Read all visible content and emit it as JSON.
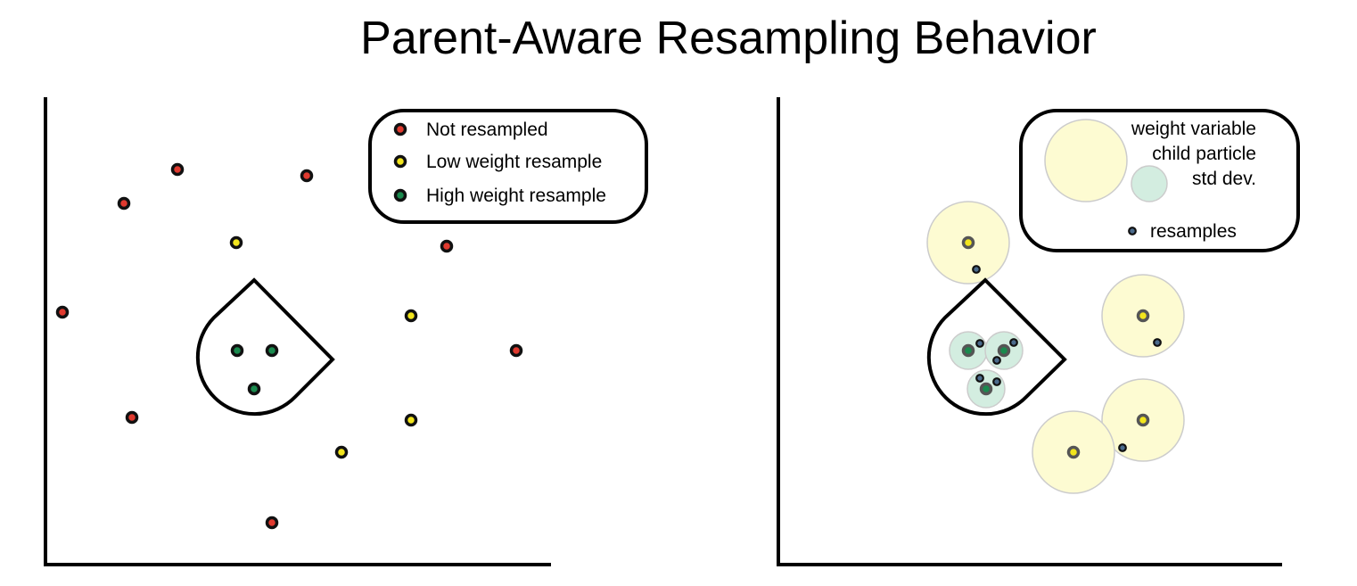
{
  "title": "Parent-Aware Resampling Behavior",
  "colors": {
    "not_resampled": "#e03a2f",
    "low_weight": "#f2e51d",
    "high_weight": "#1a8a4e",
    "low_weight_halo": "#fdfbd2",
    "high_weight_halo": "#d3ede0",
    "halo_stroke": "#cccccc",
    "resample_center": "#4b6b8c"
  },
  "left_panel": {
    "legend": {
      "not_resampled": "Not resampled",
      "low_weight": "Low weight resample",
      "high_weight": "High weight resample"
    }
  },
  "right_panel": {
    "legend": {
      "line1": "weight variable",
      "line2": "child particle",
      "line3": "std dev.",
      "resamples": "resamples"
    }
  }
}
